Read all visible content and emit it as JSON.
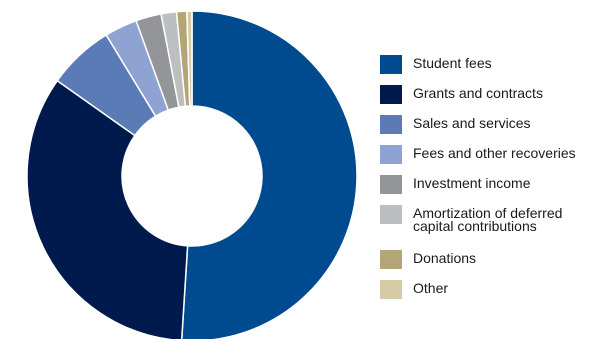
{
  "chart_data": {
    "type": "pie",
    "donut": true,
    "title": "",
    "legend_position": "right",
    "categories": [
      "Student fees",
      "Grants and contracts",
      "Sales and services",
      "Fees and other recoveries",
      "Investment income",
      "Amortization of deferred capital contributions",
      "Donations",
      "Other"
    ],
    "legend_labels": [
      "Student fees",
      "Grants and contracts",
      "Sales and services",
      "Fees and other recoveries",
      "Investment income",
      "Amortization of deferred\ncapital contributions",
      "Donations",
      "Other"
    ],
    "values": [
      51.0,
      33.8,
      6.5,
      3.2,
      2.5,
      1.5,
      1.0,
      0.5
    ],
    "colors": [
      "#004a8f",
      "#001a4d",
      "#5a7bb5",
      "#8ea3d1",
      "#939598",
      "#bcbec0",
      "#b3a575",
      "#d6cba5"
    ]
  }
}
